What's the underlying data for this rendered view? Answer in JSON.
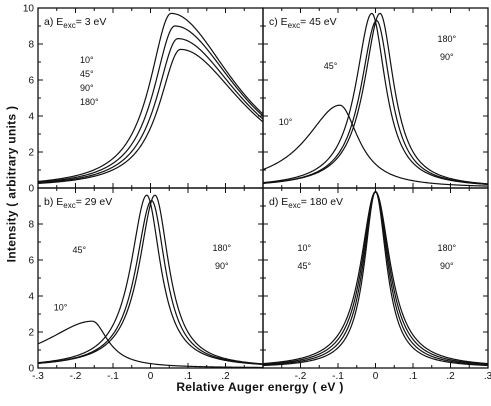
{
  "figure": {
    "ylabel": "Intensity ( arbitrary units )",
    "xlabel": "Relative Auger energy ( eV )"
  },
  "chart_data": [
    {
      "panel": "a",
      "type": "line",
      "title": "a) E",
      "title_sub": "exc",
      "title_value": "= 3 eV",
      "legend_lines": [
        "10°",
        "45°",
        "90°",
        "180°"
      ],
      "xlim": [
        -0.3,
        0.3
      ],
      "ylim": [
        0,
        10
      ],
      "x_ticks": [],
      "y_ticks": [
        "0",
        "2",
        "4",
        "6",
        "8",
        "10"
      ],
      "series": [
        {
          "name": "10°",
          "center": 0.055,
          "width": 0.07,
          "peak": 9.7,
          "left_factor": 1.0,
          "right_factor": 3.0,
          "sat_y": 6.1
        },
        {
          "name": "45°",
          "center": 0.065,
          "width": 0.07,
          "peak": 9.0,
          "left_factor": 1.0,
          "right_factor": 3.0,
          "sat_y": 6.1
        },
        {
          "name": "90°",
          "center": 0.073,
          "width": 0.07,
          "peak": 8.3,
          "left_factor": 1.0,
          "right_factor": 3.0,
          "sat_y": 6.1
        },
        {
          "name": "180°",
          "center": 0.08,
          "width": 0.07,
          "peak": 7.7,
          "left_factor": 1.0,
          "right_factor": 3.0,
          "sat_y": 6.1
        }
      ]
    },
    {
      "panel": "c",
      "type": "line",
      "title": "c) E",
      "title_sub": "exc",
      "title_value": "= 45 eV",
      "legend_lines": [],
      "labels": [
        {
          "text": "45°",
          "x": -0.12,
          "y": 6.6
        },
        {
          "text": "180°",
          "x": 0.19,
          "y": 8.1
        },
        {
          "text": "90°",
          "x": 0.19,
          "y": 7.1
        },
        {
          "text": "10°",
          "x": -0.24,
          "y": 3.5
        }
      ],
      "xlim": [
        -0.3,
        0.3
      ],
      "ylim": [
        0,
        10
      ],
      "x_ticks": [],
      "y_ticks": [],
      "series": [
        {
          "name": "45°",
          "center": -0.01,
          "width": 0.045,
          "peak": 9.7,
          "left_factor": 1.15,
          "right_factor": 1.0
        },
        {
          "name": "90°",
          "center": 0.003,
          "width": 0.045,
          "peak": 9.3,
          "left_factor": 1.15,
          "right_factor": 1.0
        },
        {
          "name": "180°",
          "center": 0.012,
          "width": 0.045,
          "peak": 9.7,
          "left_factor": 1.15,
          "right_factor": 1.0
        },
        {
          "name": "10°",
          "center": -0.095,
          "width": 0.11,
          "peak": 4.6,
          "left_factor": 1.0,
          "right_factor": 0.55
        }
      ]
    },
    {
      "panel": "b",
      "type": "line",
      "title": "b) E",
      "title_sub": "exc",
      "title_value": "= 29 eV",
      "legend_lines": [],
      "labels": [
        {
          "text": "45°",
          "x": -0.19,
          "y": 6.4
        },
        {
          "text": "180°",
          "x": 0.19,
          "y": 6.5
        },
        {
          "text": "90°",
          "x": 0.19,
          "y": 5.5
        },
        {
          "text": "10°",
          "x": -0.24,
          "y": 3.2
        }
      ],
      "xlim": [
        -0.3,
        0.3
      ],
      "ylim": [
        0,
        10
      ],
      "x_ticks": [],
      "y_ticks": [
        "0",
        "2",
        "4",
        "6",
        "8"
      ],
      "series": [
        {
          "name": "45°",
          "center": -0.01,
          "width": 0.045,
          "peak": 9.6,
          "left_factor": 1.15,
          "right_factor": 1.0
        },
        {
          "name": "90°",
          "center": 0.003,
          "width": 0.045,
          "peak": 9.3,
          "left_factor": 1.15,
          "right_factor": 1.0
        },
        {
          "name": "180°",
          "center": 0.012,
          "width": 0.045,
          "peak": 9.6,
          "left_factor": 1.15,
          "right_factor": 1.0
        },
        {
          "name": "10°",
          "center": -0.155,
          "width": 0.1,
          "peak": 2.6,
          "left_factor": 1.5,
          "right_factor": 0.5
        }
      ]
    },
    {
      "panel": "d",
      "type": "line",
      "title": "d) E",
      "title_sub": "exc",
      "title_value": "= 180 eV",
      "legend_lines": [],
      "labels": [
        {
          "text": "10°",
          "x": -0.19,
          "y": 6.5
        },
        {
          "text": "45°",
          "x": -0.19,
          "y": 5.5
        },
        {
          "text": "180°",
          "x": 0.19,
          "y": 6.5
        },
        {
          "text": "90°",
          "x": 0.19,
          "y": 5.5
        }
      ],
      "xlim": [
        -0.3,
        0.3
      ],
      "ylim": [
        0,
        10
      ],
      "x_ticks": [],
      "y_ticks": [],
      "series": [
        {
          "name": "10°",
          "center": 0.0,
          "width": 0.048,
          "peak": 9.8,
          "left_factor": 1.0,
          "right_factor": 1.0
        },
        {
          "name": "45°",
          "center": 0.0,
          "width": 0.044,
          "peak": 9.8,
          "left_factor": 1.0,
          "right_factor": 1.0
        },
        {
          "name": "90°",
          "center": 0.0,
          "width": 0.04,
          "peak": 9.8,
          "left_factor": 1.0,
          "right_factor": 1.0
        },
        {
          "name": "180°",
          "center": 0.0,
          "width": 0.036,
          "peak": 9.8,
          "left_factor": 1.0,
          "right_factor": 1.0
        }
      ]
    }
  ],
  "x_axis": {
    "ticks_left": [
      {
        "v": -0.3,
        "label": "-.3"
      },
      {
        "v": -0.2,
        "label": "-.2"
      },
      {
        "v": -0.1,
        "label": "-.1"
      },
      {
        "v": 0.0,
        "label": "0"
      },
      {
        "v": 0.1,
        "label": ".1"
      },
      {
        "v": 0.2,
        "label": ".2"
      }
    ],
    "ticks_right": [
      {
        "v": -0.2,
        "label": "-.2"
      },
      {
        "v": -0.1,
        "label": "-.1"
      },
      {
        "v": 0.0,
        "label": "0"
      },
      {
        "v": 0.1,
        "label": ".1"
      },
      {
        "v": 0.2,
        "label": ".2"
      },
      {
        "v": 0.3,
        "label": ".3"
      }
    ]
  }
}
